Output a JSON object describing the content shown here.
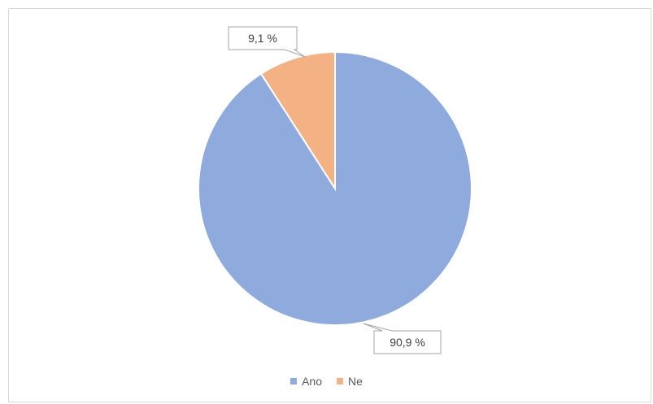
{
  "chart_data": {
    "type": "pie",
    "categories": [
      "Ano",
      "Ne"
    ],
    "values": [
      90.9,
      9.1
    ],
    "data_labels": [
      "90,9 %",
      "9,1 %"
    ],
    "colors": [
      "#8faadc",
      "#f4b183"
    ],
    "legend": {
      "placement": "bottom",
      "entries": [
        "Ano",
        "Ne"
      ]
    },
    "title": ""
  }
}
